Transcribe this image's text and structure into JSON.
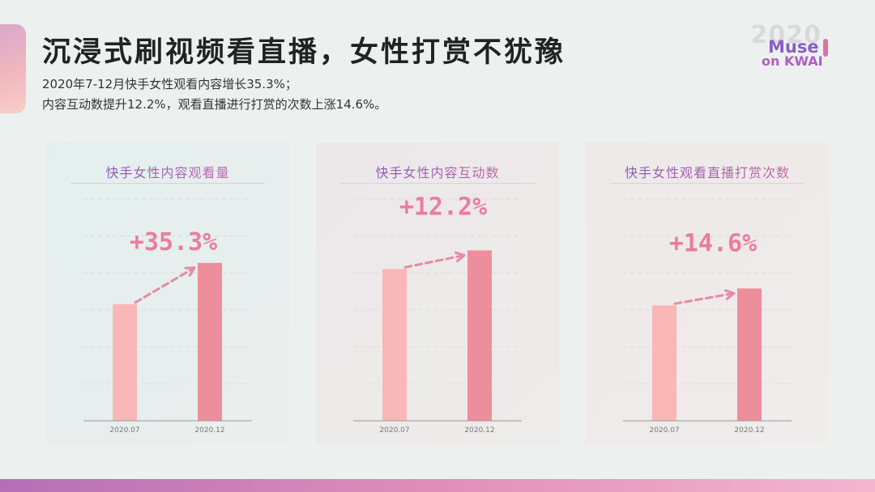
{
  "header": {
    "title": "沉浸式刷视频看直播，女性打赏不犹豫",
    "subtitle_line1": "2020年7-12月快手女性观看内容增长35.3%；",
    "subtitle_line2": "内容互动数提升12.2%，观看直播进行打赏的次数上涨14.6%。"
  },
  "brand": {
    "year": "2020",
    "line1": "Muse",
    "line2": "on KWAI"
  },
  "colors": {
    "bar_start": "#f9b7b7",
    "bar_end": "#ed8f9b",
    "arrow": "#e58aa5",
    "growth_text": "#ea7d9c",
    "title_gradient_start": "#8a5ab8",
    "title_gradient_end": "#c06aa8"
  },
  "chart_data": [
    {
      "type": "bar",
      "title": "快手女性内容观看量",
      "categories": [
        "2020.07",
        "2020.12"
      ],
      "values": [
        100,
        135.3
      ],
      "ylim": [
        0,
        190
      ],
      "growth_label": "+35.3%",
      "grid": true
    },
    {
      "type": "bar",
      "title": "快手女性内容互动数",
      "categories": [
        "2020.07",
        "2020.12"
      ],
      "values": [
        100,
        112.2
      ],
      "ylim": [
        0,
        146
      ],
      "growth_label": "+12.2%",
      "grid": true
    },
    {
      "type": "bar",
      "title": "快手女性观看直播打赏次数",
      "categories": [
        "2020.07",
        "2020.12"
      ],
      "values": [
        100,
        114.6
      ],
      "ylim": [
        0,
        192
      ],
      "growth_label": "+14.6%",
      "grid": true
    }
  ]
}
